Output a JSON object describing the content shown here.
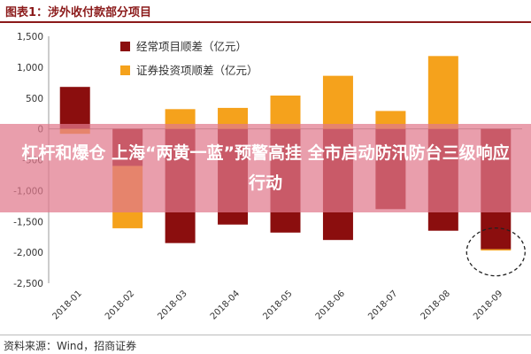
{
  "header": {
    "title": "图表1：涉外收付款部分项目"
  },
  "source": "资料来源：Wind，招商证券",
  "banner": {
    "text": "杠杆和爆仓 上海“两黄一蓝”预警高挂 全市启动防汛防台三级响应行动"
  },
  "chart_data": {
    "type": "bar",
    "categories": [
      "2018-01",
      "2018-02",
      "2018-03",
      "2018-04",
      "2018-05",
      "2018-06",
      "2018-07",
      "2018-08",
      "2018-09"
    ],
    "series": [
      {
        "name": "经常项目顺差（亿元）",
        "color": "#8b0e0e",
        "values": [
          680,
          -600,
          -1850,
          -1550,
          -1680,
          -1800,
          -1300,
          -1650,
          -1950
        ]
      },
      {
        "name": "证券投资项顺差（亿元）",
        "color": "#f5a21c",
        "values": [
          -80,
          -1010,
          320,
          340,
          540,
          860,
          290,
          1180,
          -20
        ]
      }
    ],
    "ylim": [
      -2500,
      1500
    ],
    "yticks": [
      -2500,
      -2000,
      -1500,
      -1000,
      -500,
      0,
      500,
      1000,
      1500
    ],
    "ytick_labels": [
      "-2,500",
      "-2,000",
      "-1,500",
      "-1,000",
      "-500",
      "0",
      "500",
      "1,000",
      "1,500"
    ],
    "legend_position": "top-left",
    "grid": false,
    "annotation": "dashed circle around 2018-09"
  }
}
